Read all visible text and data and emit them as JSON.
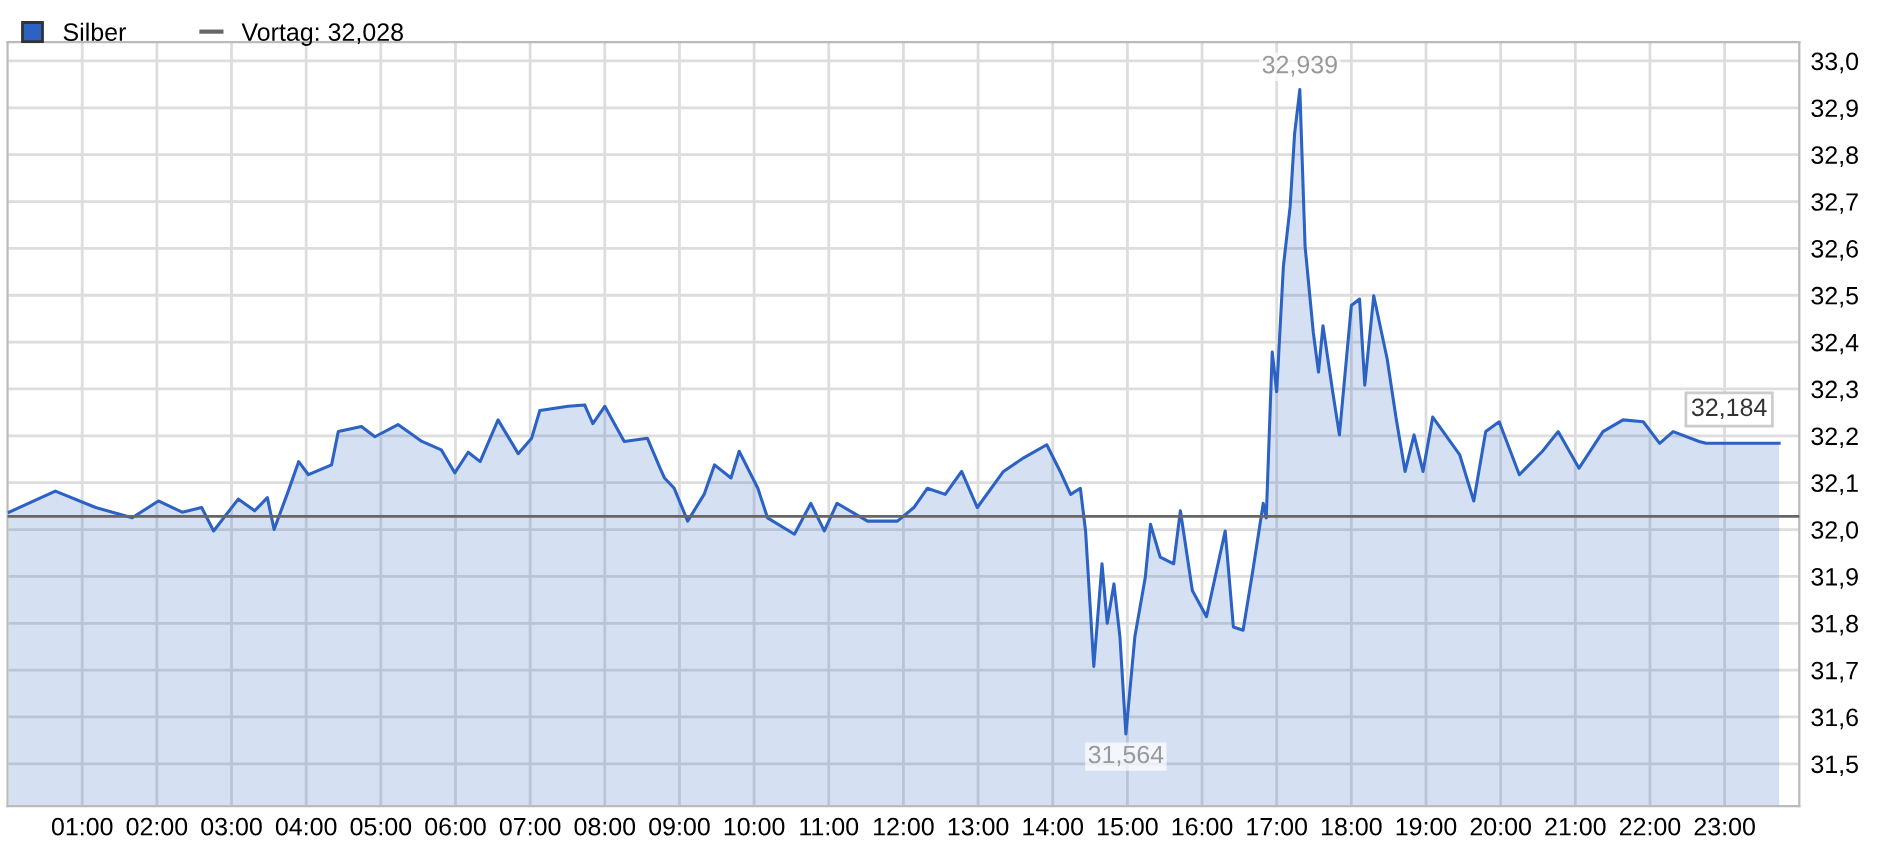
{
  "chart_data": {
    "type": "area",
    "x": [
      0.02,
      0.64,
      1.18,
      1.67,
      2.02,
      2.34,
      2.6,
      2.76,
      3.09,
      3.31,
      3.48,
      3.57,
      3.76,
      3.9,
      4.03,
      4.34,
      4.43,
      4.74,
      4.92,
      5.23,
      5.55,
      5.81,
      5.99,
      6.17,
      6.33,
      6.57,
      6.84,
      7.02,
      7.13,
      7.51,
      7.73,
      7.84,
      8.0,
      8.26,
      8.57,
      8.74,
      8.8,
      8.93,
      9.11,
      9.33,
      9.47,
      9.69,
      9.8,
      10.05,
      10.18,
      10.54,
      10.76,
      10.94,
      11.11,
      11.52,
      11.92,
      12.14,
      12.32,
      12.56,
      12.78,
      12.99,
      13.34,
      13.61,
      13.92,
      14.1,
      14.24,
      14.37,
      14.44,
      14.55,
      14.66,
      14.73,
      14.82,
      14.9,
      14.98,
      15.1,
      15.24,
      15.31,
      15.44,
      15.62,
      15.71,
      15.87,
      16.06,
      16.31,
      16.42,
      16.55,
      16.68,
      16.82,
      16.86,
      16.94,
      17.0,
      17.09,
      17.18,
      17.24,
      17.31,
      17.38,
      17.49,
      17.56,
      17.62,
      17.75,
      17.84,
      18.0,
      18.11,
      18.18,
      18.3,
      18.48,
      18.6,
      18.72,
      18.84,
      18.96,
      19.09,
      19.45,
      19.64,
      19.8,
      19.98,
      20.25,
      20.56,
      20.77,
      21.05,
      21.37,
      21.64,
      21.91,
      22.13,
      22.31,
      22.66,
      22.75,
      23.73
    ],
    "series": [
      {
        "name": "Silber",
        "color": "#2b62c4",
        "values": [
          32.037,
          32.082,
          32.047,
          32.025,
          32.061,
          32.037,
          32.047,
          31.997,
          32.065,
          32.04,
          32.068,
          32.0,
          32.082,
          32.145,
          32.117,
          32.138,
          32.209,
          32.22,
          32.198,
          32.224,
          32.188,
          32.17,
          32.121,
          32.165,
          32.145,
          32.234,
          32.162,
          32.195,
          32.254,
          32.263,
          32.266,
          32.226,
          32.263,
          32.188,
          32.195,
          32.131,
          32.11,
          32.088,
          32.018,
          32.075,
          32.138,
          32.11,
          32.167,
          32.088,
          32.025,
          31.99,
          32.056,
          31.997,
          32.056,
          32.018,
          32.018,
          32.047,
          32.088,
          32.075,
          32.124,
          32.047,
          32.124,
          32.153,
          32.181,
          32.124,
          32.075,
          32.088,
          31.997,
          31.708,
          31.927,
          31.8,
          31.884,
          31.771,
          31.564,
          31.771,
          31.898,
          32.011,
          31.941,
          31.927,
          32.04,
          31.87,
          31.814,
          31.997,
          31.792,
          31.785,
          31.912,
          32.056,
          32.025,
          32.379,
          32.294,
          32.562,
          32.689,
          32.845,
          32.939,
          32.605,
          32.421,
          32.336,
          32.435,
          32.294,
          32.202,
          32.478,
          32.492,
          32.308,
          32.499,
          32.364,
          32.237,
          32.124,
          32.202,
          32.124,
          32.24,
          32.16,
          32.061,
          32.209,
          32.23,
          32.117,
          32.167,
          32.209,
          32.131,
          32.209,
          32.234,
          32.23,
          32.184,
          32.209,
          32.188,
          32.184,
          32.184
        ]
      }
    ],
    "xlim": [
      0,
      24
    ],
    "xticks": [
      {
        "value": 1,
        "label": "01:00"
      },
      {
        "value": 2,
        "label": "02:00"
      },
      {
        "value": 3,
        "label": "03:00"
      },
      {
        "value": 4,
        "label": "04:00"
      },
      {
        "value": 5,
        "label": "05:00"
      },
      {
        "value": 6,
        "label": "06:00"
      },
      {
        "value": 7,
        "label": "07:00"
      },
      {
        "value": 8,
        "label": "08:00"
      },
      {
        "value": 9,
        "label": "09:00"
      },
      {
        "value": 10,
        "label": "10:00"
      },
      {
        "value": 11,
        "label": "11:00"
      },
      {
        "value": 12,
        "label": "12:00"
      },
      {
        "value": 13,
        "label": "13:00"
      },
      {
        "value": 14,
        "label": "14:00"
      },
      {
        "value": 15,
        "label": "15:00"
      },
      {
        "value": 16,
        "label": "16:00"
      },
      {
        "value": 17,
        "label": "17:00"
      },
      {
        "value": 18,
        "label": "18:00"
      },
      {
        "value": 19,
        "label": "19:00"
      },
      {
        "value": 20,
        "label": "20:00"
      },
      {
        "value": 21,
        "label": "21:00"
      },
      {
        "value": 22,
        "label": "22:00"
      },
      {
        "value": 23,
        "label": "23:00"
      }
    ],
    "ylim": [
      31.41,
      33.04
    ],
    "yticks": [
      {
        "value": 31.5,
        "label": "31,5"
      },
      {
        "value": 31.6,
        "label": "31,6"
      },
      {
        "value": 31.7,
        "label": "31,7"
      },
      {
        "value": 31.8,
        "label": "31,8"
      },
      {
        "value": 31.9,
        "label": "31,9"
      },
      {
        "value": 32.0,
        "label": "32,0"
      },
      {
        "value": 32.1,
        "label": "32,1"
      },
      {
        "value": 32.2,
        "label": "32,2"
      },
      {
        "value": 32.3,
        "label": "32,3"
      },
      {
        "value": 32.4,
        "label": "32,4"
      },
      {
        "value": 32.5,
        "label": "32,5"
      },
      {
        "value": 32.6,
        "label": "32,6"
      },
      {
        "value": 32.7,
        "label": "32,7"
      },
      {
        "value": 32.8,
        "label": "32,8"
      },
      {
        "value": 32.9,
        "label": "32,9"
      },
      {
        "value": 33.0,
        "label": "33,0"
      }
    ],
    "ref_lines": [
      {
        "axis": "y",
        "value": 32.028,
        "label": "Vortag: 32,028",
        "color": "#666666"
      }
    ],
    "annotations": [
      {
        "text": "32,939",
        "x": 17.31,
        "y": 32.939
      },
      {
        "text": "31,564",
        "x": 14.98,
        "y": 31.564
      },
      {
        "text": "32,184",
        "x": 23.73,
        "y": 32.184
      }
    ],
    "grid": true,
    "legend": "top left",
    "marker": "none",
    "line_style": "solid"
  }
}
